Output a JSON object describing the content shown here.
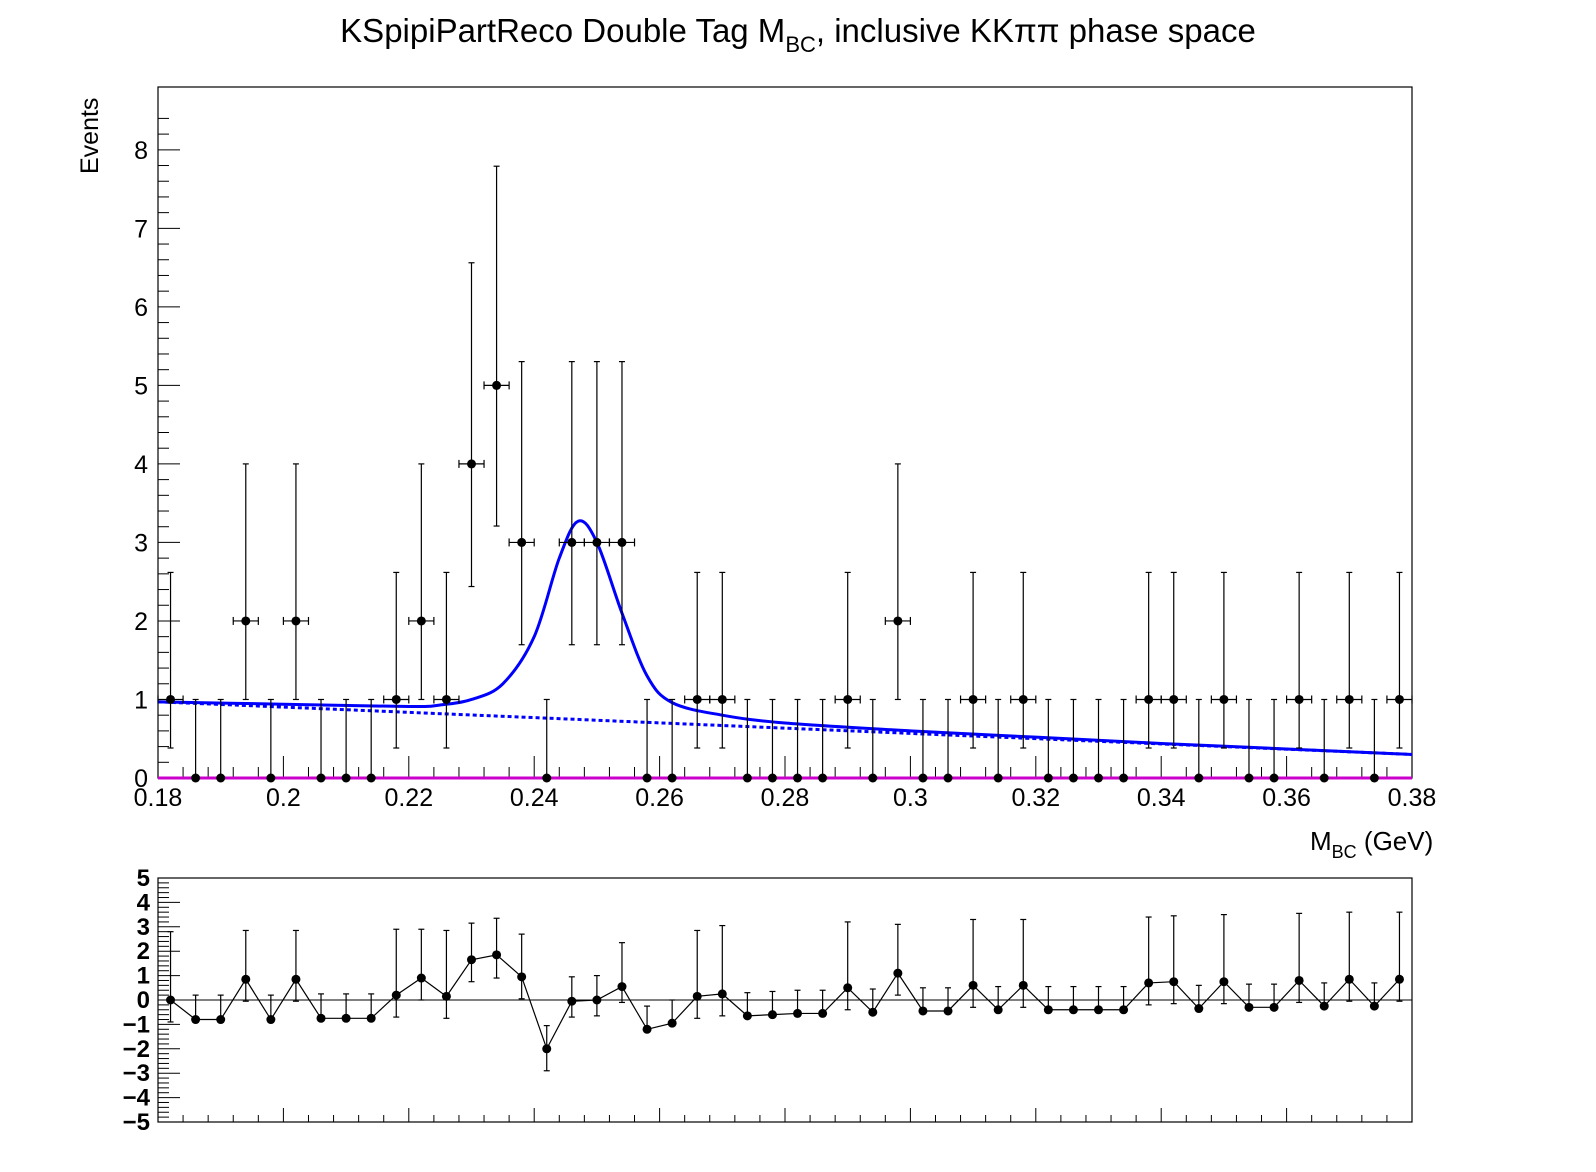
{
  "chart_data": [
    {
      "type": "scatter",
      "panel": "main",
      "title": "KSpipiPartReco Double Tag M",
      "title_sub": "BC",
      "title_rest": ", inclusive KKππ phase space",
      "xlabel_main": "M",
      "xlabel_sub": "BC",
      "xlabel_rest": " (GeV)",
      "ylabel": "Events",
      "xlim": [
        0.18,
        0.38
      ],
      "ylim": [
        0,
        8.8
      ],
      "x_ticks": [
        "0.18",
        "0.2",
        "0.22",
        "0.24",
        "0.26",
        "0.28",
        "0.3",
        "0.32",
        "0.34",
        "0.36",
        "0.38"
      ],
      "y_ticks": [
        "0",
        "1",
        "2",
        "3",
        "4",
        "5",
        "6",
        "7",
        "8"
      ],
      "bin_width": 0.004,
      "x": [
        0.182,
        0.186,
        0.19,
        0.194,
        0.198,
        0.202,
        0.206,
        0.21,
        0.214,
        0.218,
        0.222,
        0.226,
        0.23,
        0.234,
        0.238,
        0.242,
        0.246,
        0.25,
        0.254,
        0.258,
        0.262,
        0.266,
        0.27,
        0.274,
        0.278,
        0.282,
        0.286,
        0.29,
        0.294,
        0.298,
        0.302,
        0.306,
        0.31,
        0.314,
        0.318,
        0.322,
        0.326,
        0.33,
        0.334,
        0.338,
        0.342,
        0.346,
        0.35,
        0.354,
        0.358,
        0.362,
        0.366,
        0.37,
        0.374,
        0.378
      ],
      "y": [
        1,
        0,
        0,
        2,
        0,
        2,
        0,
        0,
        0,
        1,
        2,
        1,
        4,
        5,
        3,
        0,
        3,
        3,
        3,
        0,
        0,
        1,
        1,
        0,
        0,
        0,
        0,
        1,
        0,
        2,
        0,
        0,
        1,
        0,
        1,
        0,
        0,
        0,
        0,
        1,
        1,
        0,
        1,
        0,
        0,
        1,
        0,
        1,
        0,
        1
      ],
      "series": [
        {
          "name": "",
          "style": "solid",
          "color": "#0000ff",
          "description_points_x": [
            0.18,
            0.2,
            0.22,
            0.225,
            0.23,
            0.235,
            0.24,
            0.244,
            0.247,
            0.25,
            0.254,
            0.258,
            0.262,
            0.27,
            0.28,
            0.3,
            0.32,
            0.34,
            0.36,
            0.38
          ],
          "description_points_y": [
            0.97,
            0.94,
            0.91,
            0.93,
            1.0,
            1.2,
            1.8,
            2.8,
            3.27,
            3.0,
            2.1,
            1.3,
            0.96,
            0.8,
            0.7,
            0.6,
            0.52,
            0.44,
            0.37,
            0.3
          ]
        },
        {
          "name": "",
          "style": "dashed",
          "color": "#0000ff",
          "description_points_x": [
            0.18,
            0.38
          ],
          "description_points_y": [
            0.97,
            0.3
          ]
        },
        {
          "name": "",
          "style": "solid",
          "color": "#cc00cc",
          "description_points_x": [
            0.18,
            0.38
          ],
          "description_points_y": [
            0.0,
            0.0
          ]
        }
      ]
    },
    {
      "type": "scatter",
      "panel": "residual",
      "xlim": [
        0.18,
        0.38
      ],
      "ylim": [
        -5,
        5
      ],
      "y_ticks": [
        "5",
        "4",
        "3",
        "2",
        "1",
        "0",
        "−1",
        "−2",
        "−3",
        "−4",
        "−5"
      ],
      "x": [
        0.182,
        0.186,
        0.19,
        0.194,
        0.198,
        0.202,
        0.206,
        0.21,
        0.214,
        0.218,
        0.222,
        0.226,
        0.23,
        0.234,
        0.238,
        0.242,
        0.246,
        0.25,
        0.254,
        0.258,
        0.262,
        0.266,
        0.27,
        0.274,
        0.278,
        0.282,
        0.286,
        0.29,
        0.294,
        0.298,
        0.302,
        0.306,
        0.31,
        0.314,
        0.318,
        0.322,
        0.326,
        0.33,
        0.334,
        0.338,
        0.342,
        0.346,
        0.35,
        0.354,
        0.358,
        0.362,
        0.366,
        0.37,
        0.374,
        0.378
      ],
      "y": [
        0.0,
        -0.8,
        -0.8,
        0.85,
        -0.8,
        0.85,
        -0.75,
        -0.75,
        -0.75,
        0.2,
        0.9,
        0.15,
        1.65,
        1.85,
        0.95,
        -2.0,
        -0.05,
        0.0,
        0.55,
        -1.2,
        -0.95,
        0.15,
        0.25,
        -0.65,
        -0.6,
        -0.55,
        -0.55,
        0.5,
        -0.5,
        1.1,
        -0.45,
        -0.45,
        0.6,
        -0.4,
        0.6,
        -0.4,
        -0.4,
        -0.4,
        -0.4,
        0.7,
        0.75,
        -0.35,
        0.75,
        -0.3,
        -0.3,
        0.8,
        -0.25,
        0.85,
        -0.25,
        0.85
      ],
      "err_up": [
        2.8,
        1.0,
        1.0,
        2.0,
        1.0,
        2.0,
        1.0,
        1.0,
        1.0,
        2.7,
        2.0,
        2.7,
        1.5,
        1.5,
        1.75,
        0.95,
        1.0,
        1.0,
        1.8,
        0.95,
        0.95,
        2.7,
        2.8,
        0.95,
        0.95,
        0.95,
        0.95,
        2.7,
        0.95,
        2.0,
        0.95,
        0.95,
        2.7,
        0.95,
        2.7,
        0.95,
        0.95,
        0.95,
        0.95,
        2.7,
        2.7,
        0.95,
        2.75,
        0.95,
        0.95,
        2.75,
        0.95,
        2.75,
        0.95,
        2.75
      ],
      "err_down": [
        0.9,
        0.0,
        0.0,
        0.9,
        0.0,
        0.9,
        0.0,
        0.0,
        0.0,
        0.9,
        0.9,
        0.9,
        0.9,
        0.95,
        0.9,
        0.9,
        0.65,
        0.65,
        0.65,
        0.0,
        0.0,
        0.9,
        0.9,
        0.0,
        0.0,
        0.0,
        0.0,
        0.9,
        0.0,
        0.9,
        0.0,
        0.0,
        0.9,
        0.0,
        0.9,
        0.0,
        0.0,
        0.0,
        0.0,
        0.9,
        0.9,
        0.0,
        0.9,
        0.0,
        0.0,
        0.9,
        0.0,
        0.9,
        0.0,
        0.9
      ]
    }
  ]
}
